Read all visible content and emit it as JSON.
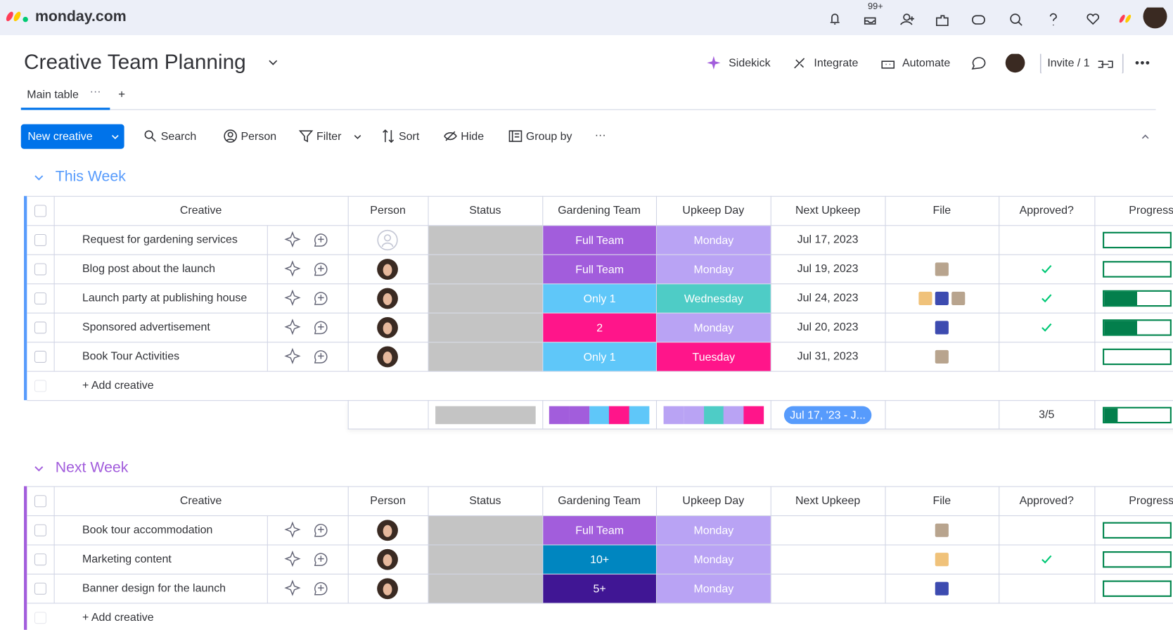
{
  "app": {
    "brand": "monday.com",
    "notifications_badge": "99+"
  },
  "board": {
    "title": "Creative Team Planning",
    "actions": [
      "Sidekick",
      "Integrate",
      "Automate"
    ],
    "invite": "Invite / 1",
    "tabs": [
      "Main table"
    ]
  },
  "toolbar": {
    "primary": "New creative",
    "tools": [
      "Search",
      "Person",
      "Filter",
      "Sort",
      "Hide",
      "Group by"
    ]
  },
  "columns": [
    "Creative",
    "Person",
    "Status",
    "Gardening Team",
    "Upkeep Day",
    "Next Upkeep",
    "File",
    "Approved?",
    "Progress"
  ],
  "groups": [
    {
      "title": "This Week",
      "color": "#579bfc",
      "add": "+ Add creative",
      "rows": [
        {
          "name": "Request for gardening services",
          "person": false,
          "team": "Full Team",
          "team_color": "#a25ddc",
          "day": "Monday",
          "day_color": "#b9a3f4",
          "next": "Jul 17, 2023",
          "files": 0,
          "approved": false,
          "progress": 0
        },
        {
          "name": "Blog post about the launch",
          "person": true,
          "team": "Full Team",
          "team_color": "#a25ddc",
          "day": "Monday",
          "day_color": "#b9a3f4",
          "next": "Jul 19, 2023",
          "files": 1,
          "approved": true,
          "progress": 0
        },
        {
          "name": "Launch party at publishing house",
          "person": true,
          "team": "Only 1",
          "team_color": "#5fc7f9",
          "day": "Wednesday",
          "day_color": "#4eccc6",
          "next": "Jul 24, 2023",
          "files": 3,
          "approved": true,
          "progress": 50
        },
        {
          "name": "Sponsored advertisement",
          "person": true,
          "team": "2",
          "team_color": "#ff158a",
          "day": "Monday",
          "day_color": "#b9a3f4",
          "next": "Jul 20, 2023",
          "files": 1,
          "approved": true,
          "progress": 50
        },
        {
          "name": "Book Tour Activities",
          "person": true,
          "team": "Only 1",
          "team_color": "#5fc7f9",
          "day": "Tuesday",
          "day_color": "#ff158a",
          "next": "Jul 31, 2023",
          "files": 1,
          "approved": false,
          "progress": 0
        }
      ],
      "summary": {
        "date_range": "Jul 17, '23 - J...",
        "approved": "3/5",
        "progress": 20
      }
    },
    {
      "title": "Next Week",
      "color": "#a25ddc",
      "add": "+ Add creative",
      "rows": [
        {
          "name": "Book tour accommodation",
          "person": true,
          "team": "Full Team",
          "team_color": "#a25ddc",
          "day": "Monday",
          "day_color": "#b9a3f4",
          "files": 1,
          "approved": false,
          "progress": 0
        },
        {
          "name": "Marketing content",
          "person": true,
          "team": "10+",
          "team_color": "#0086c0",
          "day": "Monday",
          "day_color": "#b9a3f4",
          "files": 1,
          "approved": true,
          "progress": 0
        },
        {
          "name": "Banner design for the launch",
          "person": true,
          "team": "5+",
          "team_color": "#401694",
          "day": "Monday",
          "day_color": "#b9a3f4",
          "files": 1,
          "approved": false,
          "progress": 0
        }
      ]
    }
  ]
}
